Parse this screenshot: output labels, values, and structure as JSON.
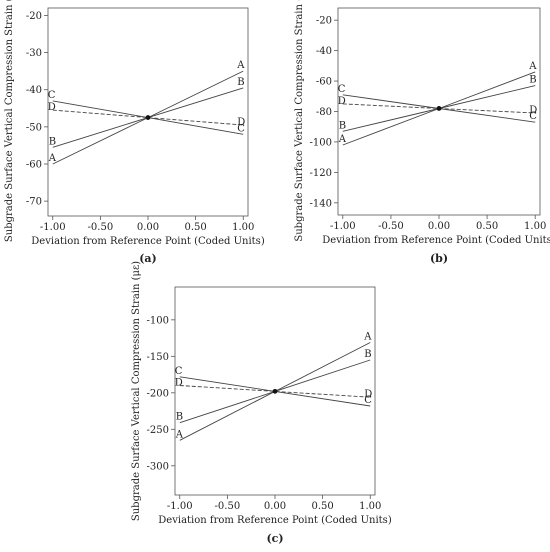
{
  "chart_data": [
    {
      "type": "line",
      "panel_label": "(a)",
      "xlabel": "Deviation from Reference Point (Coded Units)",
      "ylabel": "Subgrade Surface Vertical Compression Strain (με)",
      "xlim": [
        -1.05,
        1.05
      ],
      "ylim": [
        -74,
        -18
      ],
      "x_ticks": [
        -1.0,
        -0.5,
        0.0,
        0.5,
        1.0
      ],
      "x_tick_labels": [
        "-1.00",
        "-0.50",
        "0.00",
        "0.50",
        "1.00"
      ],
      "y_ticks": [
        -20,
        -30,
        -40,
        -50,
        -60,
        -70
      ],
      "y_tick_labels": [
        "-20",
        "-30",
        "-40",
        "-50",
        "-60",
        "-70"
      ],
      "x": [
        -1.0,
        0.0,
        1.0
      ],
      "center_point": [
        0.0,
        -47.5
      ],
      "series": [
        {
          "name": "A",
          "values": [
            -60.0,
            -47.5,
            -35.0
          ]
        },
        {
          "name": "B",
          "values": [
            -55.5,
            -47.5,
            -39.5
          ]
        },
        {
          "name": "C",
          "values": [
            -43.0,
            -47.5,
            -52.0
          ]
        },
        {
          "name": "D",
          "values": [
            -45.5,
            -47.5,
            -49.5
          ]
        }
      ]
    },
    {
      "type": "line",
      "panel_label": "(b)",
      "xlabel": "Deviation from Reference Point (Coded Units)",
      "ylabel": "Subgrade Surface Vertical Compression Strain (με)",
      "xlim": [
        -1.05,
        1.05
      ],
      "ylim": [
        -148,
        -12
      ],
      "x_ticks": [
        -1.0,
        -0.5,
        0.0,
        0.5,
        1.0
      ],
      "x_tick_labels": [
        "-1.00",
        "-0.50",
        "0.00",
        "0.50",
        "1.00"
      ],
      "y_ticks": [
        -20,
        -40,
        -60,
        -80,
        -100,
        -120,
        -140
      ],
      "y_tick_labels": [
        "-20",
        "-40",
        "-60",
        "-80",
        "-100",
        "-120",
        "-140"
      ],
      "x": [
        -1.0,
        0.0,
        1.0
      ],
      "center_point": [
        0.0,
        -78.0
      ],
      "series": [
        {
          "name": "A",
          "values": [
            -102.0,
            -78.0,
            -54.0
          ]
        },
        {
          "name": "B",
          "values": [
            -93.0,
            -78.0,
            -63.0
          ]
        },
        {
          "name": "C",
          "values": [
            -69.0,
            -78.0,
            -87.0
          ]
        },
        {
          "name": "D",
          "values": [
            -75.0,
            -78.0,
            -81.0
          ]
        }
      ]
    },
    {
      "type": "line",
      "panel_label": "(c)",
      "xlabel": "Deviation from Reference Point (Coded Units)",
      "ylabel": "Subgrade Surface Vertical Compression Strain (με)",
      "xlim": [
        -1.05,
        1.05
      ],
      "ylim": [
        -340,
        -55
      ],
      "x_ticks": [
        -1.0,
        -0.5,
        0.0,
        0.5,
        1.0
      ],
      "x_tick_labels": [
        "-1.00",
        "-0.50",
        "0.00",
        "0.50",
        "1.00"
      ],
      "y_ticks": [
        -100,
        -150,
        -200,
        -250,
        -300
      ],
      "y_tick_labels": [
        "-100",
        "-150",
        "-200",
        "-250",
        "-300"
      ],
      "x": [
        -1.0,
        0.0,
        1.0
      ],
      "center_point": [
        0.0,
        -198.0
      ],
      "series": [
        {
          "name": "A",
          "values": [
            -265.0,
            -198.0,
            -131.0
          ]
        },
        {
          "name": "B",
          "values": [
            -241.0,
            -198.0,
            -155.0
          ]
        },
        {
          "name": "C",
          "values": [
            -178.0,
            -198.0,
            -218.0
          ]
        },
        {
          "name": "D",
          "values": [
            -190.0,
            -198.0,
            -206.0
          ]
        }
      ]
    }
  ]
}
